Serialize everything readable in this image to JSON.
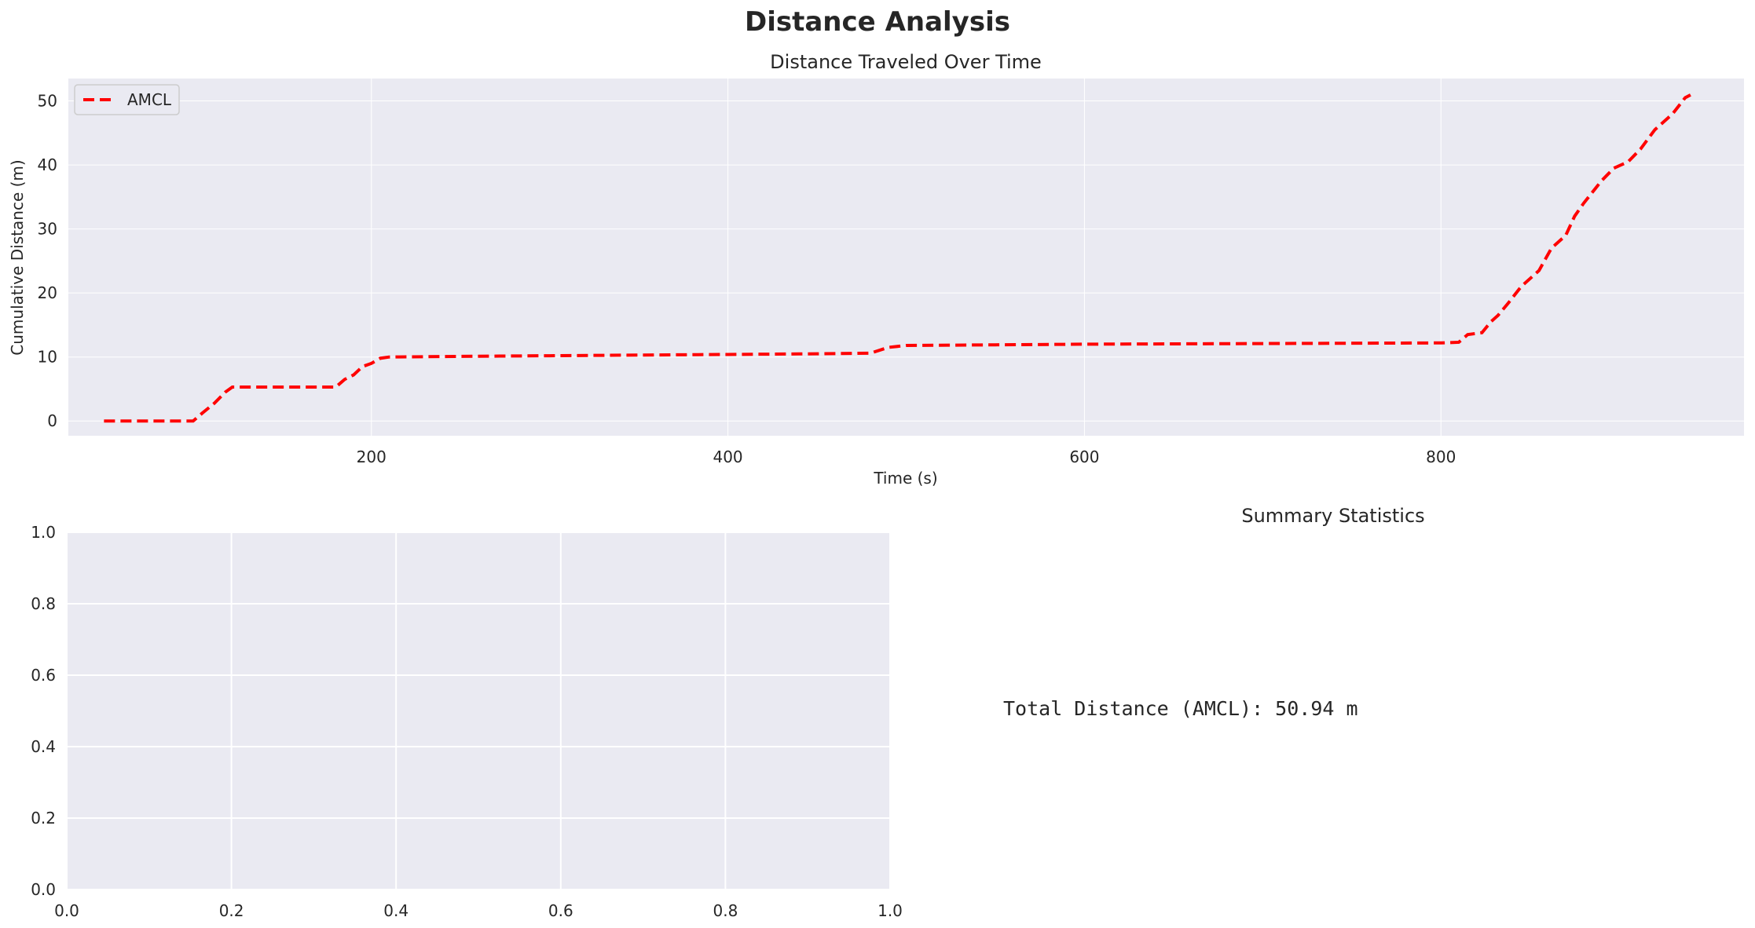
{
  "figure_title": "Distance Analysis",
  "summary": {
    "title": "Summary Statistics",
    "text": "Total Distance (AMCL): 50.94 m"
  },
  "colors": {
    "axes_bg": "#eaeaf2",
    "grid": "#ffffff",
    "series": "#ff0000",
    "text": "#262626"
  },
  "chart_data": [
    {
      "type": "line",
      "title": "Distance Traveled Over Time",
      "xlabel": "Time (s)",
      "ylabel": "Cumulative Distance (m)",
      "xlim": [
        30,
        970
      ],
      "ylim": [
        -2.3,
        53.5
      ],
      "xticks": [
        200,
        400,
        600,
        800
      ],
      "yticks": [
        0,
        10,
        20,
        30,
        40,
        50
      ],
      "legend": "upper left",
      "grid": true,
      "series": [
        {
          "name": "AMCL",
          "style": "dashed",
          "x": [
            50,
            100,
            105,
            112,
            118,
            122,
            180,
            185,
            190,
            195,
            200,
            205,
            210,
            250,
            300,
            350,
            400,
            450,
            480,
            490,
            500,
            550,
            600,
            650,
            700,
            750,
            800,
            810,
            815,
            823,
            828,
            832,
            838,
            845,
            855,
            862,
            870,
            875,
            880,
            890,
            897,
            905,
            912,
            920,
            930,
            937,
            940
          ],
          "y": [
            0,
            0,
            1.2,
            2.8,
            4.5,
            5.3,
            5.3,
            6.5,
            7.2,
            8.5,
            9.0,
            9.8,
            10.0,
            10.1,
            10.2,
            10.3,
            10.4,
            10.5,
            10.6,
            11.5,
            11.8,
            11.9,
            12.0,
            12.05,
            12.1,
            12.15,
            12.2,
            12.3,
            13.5,
            13.8,
            15.5,
            16.5,
            18.5,
            21.0,
            23.5,
            27.0,
            29.0,
            32.0,
            34.0,
            37.5,
            39.5,
            40.5,
            42.5,
            45.5,
            48.0,
            50.5,
            50.94
          ]
        }
      ]
    },
    {
      "type": "line",
      "title": "",
      "xlim": [
        0,
        1
      ],
      "ylim": [
        0,
        1
      ],
      "xticks": [
        0.0,
        0.2,
        0.4,
        0.6,
        0.8,
        1.0
      ],
      "yticks": [
        0.0,
        0.2,
        0.4,
        0.6,
        0.8,
        1.0
      ],
      "xtick_labels": [
        "0.0",
        "0.2",
        "0.4",
        "0.6",
        "0.8",
        "1.0"
      ],
      "ytick_labels": [
        "0.0",
        "0.2",
        "0.4",
        "0.6",
        "0.8",
        "1.0"
      ],
      "grid": true,
      "series": []
    }
  ]
}
